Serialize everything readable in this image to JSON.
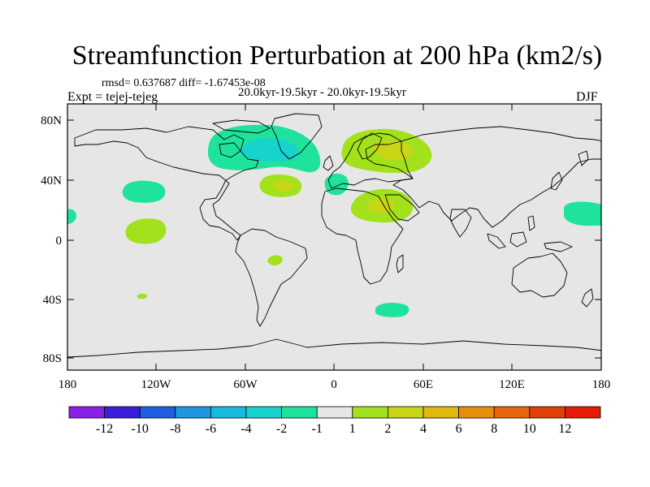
{
  "title": "Streamfunction Perturbation at 200 hPa (km2/s)",
  "stats": "rmsd= 0.637687 diff= -1.67453e-08",
  "periods": "20.0kyr-19.5kyr - 20.0kyr-19.5kyr",
  "experiment": "Expt = tejej-tejeg",
  "season": "DJF",
  "lat_ticks": [
    "80N",
    "40N",
    "0",
    "40S",
    "80S"
  ],
  "lon_ticks": [
    "180",
    "120W",
    "60W",
    "0",
    "60E",
    "120E",
    "180"
  ],
  "colorbar": {
    "labels": [
      "-12",
      "-10",
      "-8",
      "-6",
      "-4",
      "-2",
      "-1",
      "1",
      "2",
      "4",
      "6",
      "8",
      "10",
      "12"
    ],
    "colors": [
      "#8a1fe6",
      "#3a1fd9",
      "#1f5fe0",
      "#1f96e0",
      "#19b9dd",
      "#16d4cc",
      "#1fe39c",
      "#e6e6e6",
      "#a3e11c",
      "#c9d616",
      "#e0b812",
      "#e68f0e",
      "#e6650c",
      "#e0400a",
      "#e61c08"
    ]
  },
  "colors": {
    "land_background": "#e6e6e6",
    "coast": "#000000"
  }
}
